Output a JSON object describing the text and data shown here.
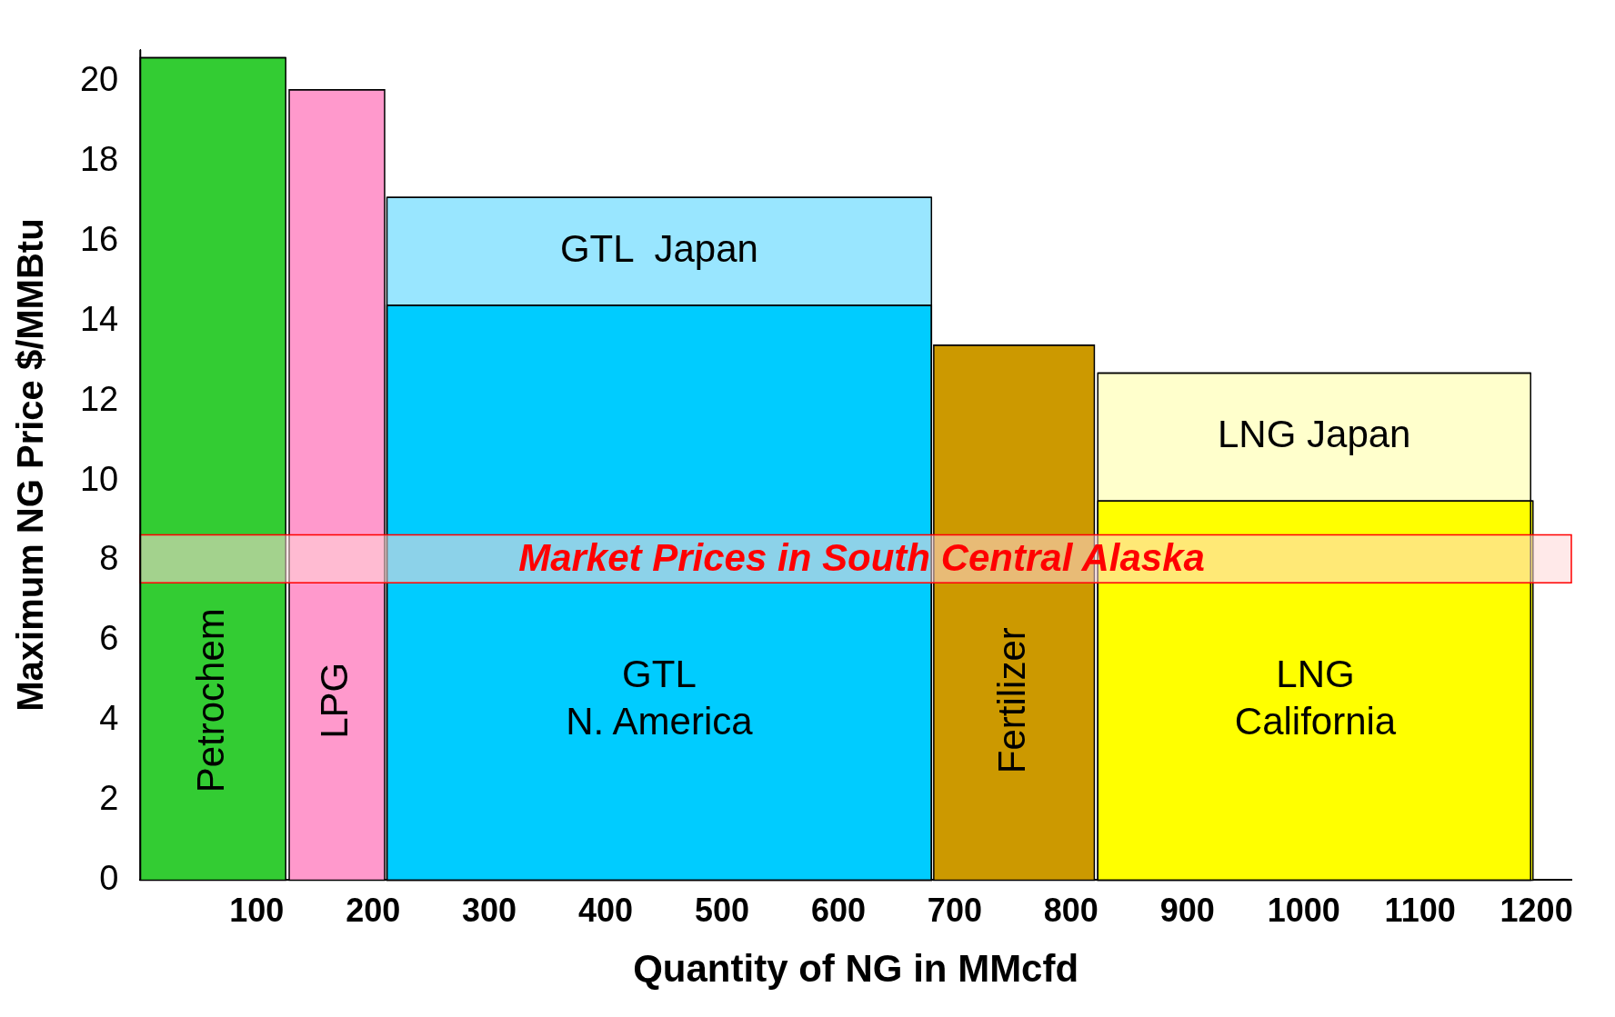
{
  "chart_data": {
    "type": "area",
    "xlabel": "Quantity of NG in MMcfd",
    "ylabel": "Maximum NG Price $/MMBtu",
    "series": [
      {
        "name": "Petrochem",
        "color": "#33cc33",
        "x": [
          0,
          125
        ],
        "values": [
          20.6,
          20.6
        ]
      },
      {
        "name": "LPG",
        "color": "#ff99cc",
        "x": [
          128,
          210
        ],
        "values": [
          19.8,
          19.8
        ]
      },
      {
        "name": "GTL  Japan",
        "color": "#99e6ff",
        "x": [
          212,
          680
        ],
        "values": [
          17.1,
          17.1
        ]
      },
      {
        "name": "GTL N. America",
        "color": "#00ccff",
        "x": [
          212,
          680
        ],
        "values": [
          14.4,
          14.4
        ]
      },
      {
        "name": "Fertilizer",
        "color": "#cc9900",
        "x": [
          682,
          820
        ],
        "values": [
          13.4,
          13.4
        ]
      },
      {
        "name": "LNG Japan",
        "color": "#ffffcc",
        "x": [
          823,
          1195
        ],
        "values": [
          12.7,
          12.7
        ]
      },
      {
        "name": "LNG California",
        "color": "#ffff00",
        "x": [
          823,
          1197
        ],
        "values": [
          9.5,
          9.5
        ]
      }
    ],
    "bands": [
      {
        "axis": "y",
        "from": 7.45,
        "to": 8.65,
        "label": "Market Prices in South Central Alaska",
        "color": "#ffd7d7"
      }
    ],
    "xlim": [
      0,
      1230
    ],
    "xticks": [
      100,
      200,
      300,
      400,
      500,
      600,
      700,
      800,
      900,
      1000,
      1100,
      1200
    ],
    "ylim": [
      0,
      20.8
    ],
    "yticks": [
      0,
      2,
      4,
      6,
      8,
      10,
      12,
      14,
      16,
      18,
      20
    ],
    "grid": false,
    "legend": false
  }
}
